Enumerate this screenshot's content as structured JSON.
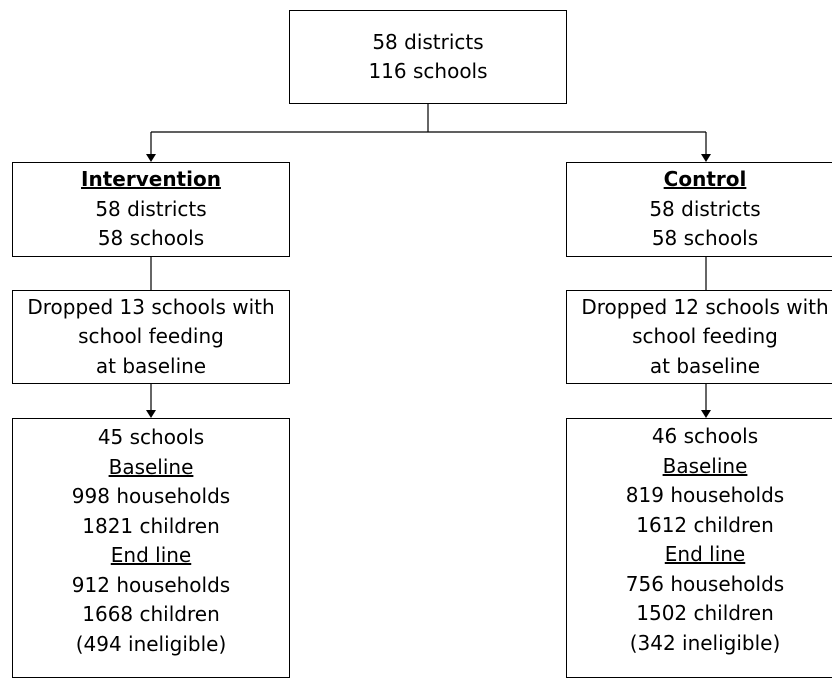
{
  "top": {
    "line1": "58 districts",
    "line2": "116 schools"
  },
  "intervention": {
    "header": "Intervention",
    "districts": "58 districts",
    "schools": "58 schools",
    "dropped": [
      "Dropped 13 schools with",
      "school feeding",
      "at baseline"
    ],
    "result": {
      "schools": "45 schools",
      "baseline_label": "Baseline",
      "baseline_households": "998 households",
      "baseline_children": "1821 children",
      "endline_label": "End line",
      "endline_households": "912 households",
      "endline_children": "1668 children",
      "ineligible": "(494 ineligible)"
    }
  },
  "control": {
    "header": "Control",
    "districts": "58 districts",
    "schools": "58 schools",
    "dropped": [
      "Dropped 12 schools with",
      "school feeding",
      "at baseline"
    ],
    "result": {
      "schools": "46 schools",
      "baseline_label": "Baseline",
      "baseline_households": "819 households",
      "baseline_children": "1612 children",
      "endline_label": "End line",
      "endline_households": "756 households",
      "endline_children": "1502 children",
      "ineligible": "(342 ineligible)"
    }
  }
}
